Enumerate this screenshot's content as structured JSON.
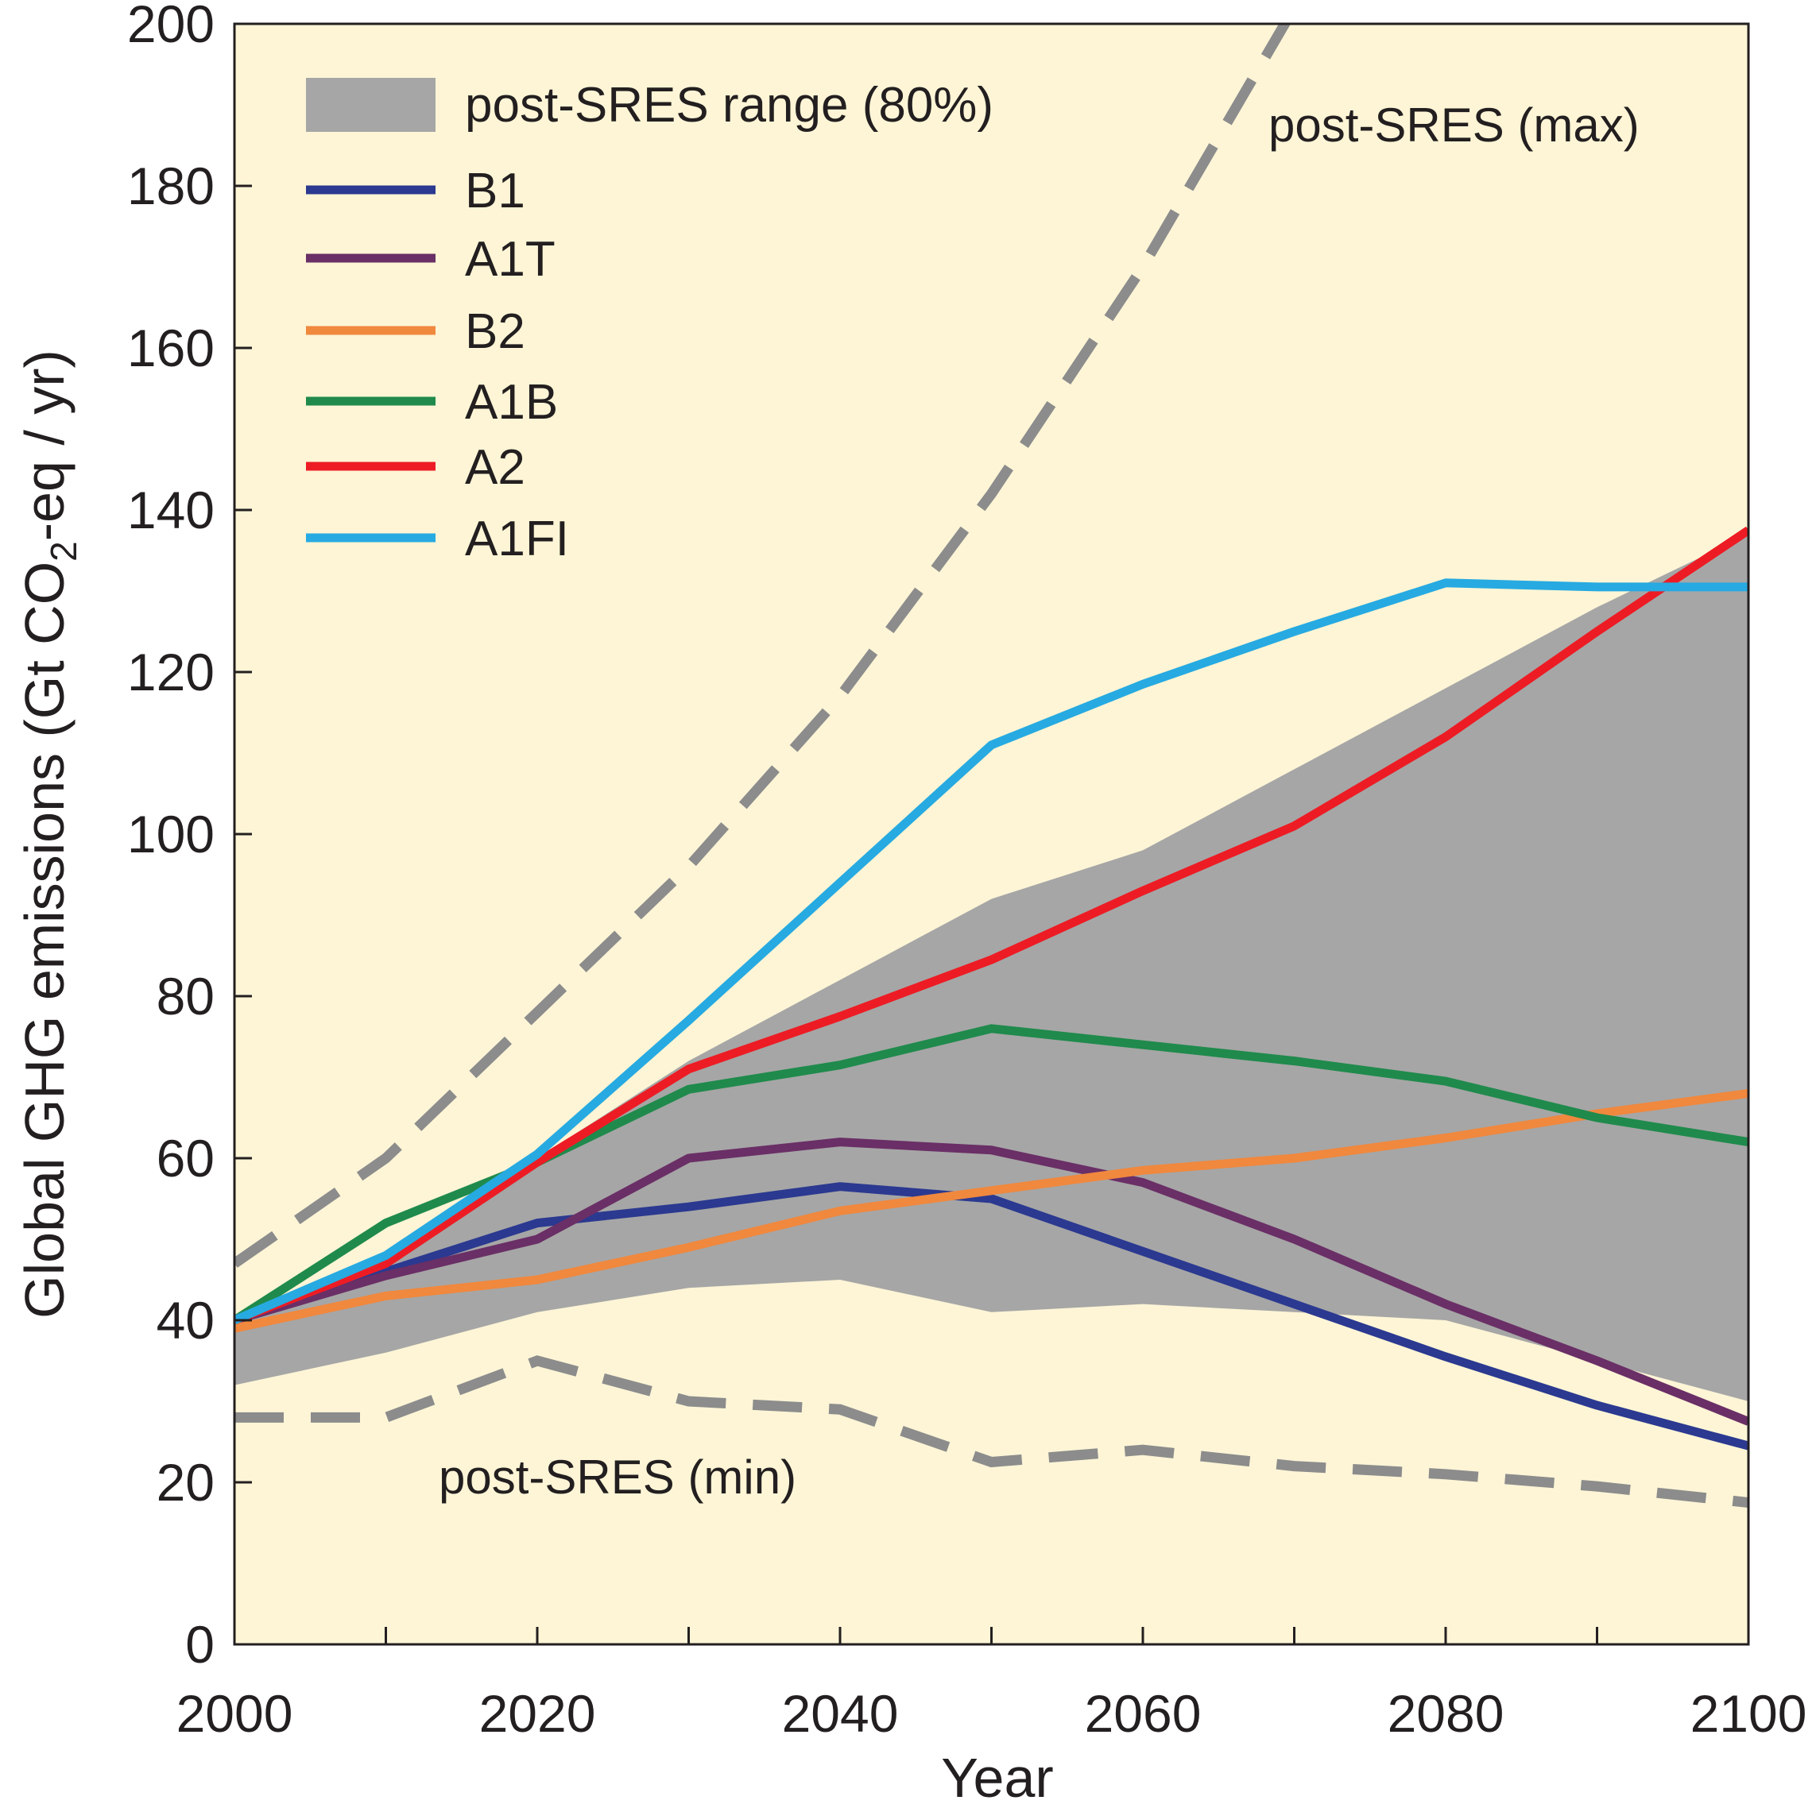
{
  "chart_data": {
    "type": "line",
    "title": "",
    "xlabel": "Year",
    "ylabel": "Global GHG emissions (Gt CO2-eq / yr)",
    "ylabel_parts": {
      "before": "Global GHG emissions (Gt CO",
      "sub": "2",
      "after": "-eq / yr)"
    },
    "xlim": [
      2000,
      2100
    ],
    "ylim": [
      0,
      200
    ],
    "x_ticks": [
      2000,
      2020,
      2040,
      2060,
      2080,
      2100
    ],
    "x_minor_ticks": [
      2010,
      2030,
      2050,
      2070,
      2090
    ],
    "y_ticks": [
      0,
      20,
      40,
      60,
      80,
      100,
      120,
      140,
      160,
      180,
      200
    ],
    "x_tick_labels": [
      "2000",
      "2020",
      "2040",
      "2060",
      "2080",
      "2100"
    ],
    "y_tick_labels": [
      "0",
      "20",
      "40",
      "60",
      "80",
      "100",
      "120",
      "140",
      "160",
      "180",
      "200"
    ],
    "background_color": "#fdf5d6",
    "band": {
      "name": "post-SRES range (80%)",
      "color": "#a6a6a6",
      "x": [
        2000,
        2010,
        2020,
        2030,
        2040,
        2050,
        2060,
        2070,
        2080,
        2090,
        2100
      ],
      "upper": [
        40,
        47,
        60,
        72,
        82,
        92,
        98,
        108,
        118,
        128,
        137
      ],
      "lower": [
        32,
        36,
        41,
        44,
        45,
        41,
        42,
        41,
        40,
        35,
        30
      ]
    },
    "series": [
      {
        "name": "B1",
        "color": "#2b3990",
        "x": [
          2000,
          2010,
          2020,
          2030,
          2040,
          2050,
          2060,
          2070,
          2080,
          2090,
          2100
        ],
        "values": [
          40,
          46,
          52,
          54,
          56.5,
          55,
          48.5,
          42,
          35.5,
          29.5,
          24.5
        ]
      },
      {
        "name": "A1T",
        "color": "#6a2f66",
        "x": [
          2000,
          2010,
          2020,
          2030,
          2040,
          2050,
          2060,
          2070,
          2080,
          2090,
          2100
        ],
        "values": [
          40,
          45.5,
          50,
          60,
          62,
          61,
          57,
          50,
          42,
          35,
          27.5
        ]
      },
      {
        "name": "B2",
        "color": "#f0883e",
        "x": [
          2000,
          2010,
          2020,
          2030,
          2040,
          2050,
          2060,
          2070,
          2080,
          2090,
          2100
        ],
        "values": [
          39,
          43,
          45,
          49,
          53.5,
          56,
          58.5,
          60,
          62.5,
          65.5,
          68
        ]
      },
      {
        "name": "A1B",
        "color": "#1f8a4c",
        "x": [
          2000,
          2010,
          2020,
          2030,
          2040,
          2050,
          2060,
          2070,
          2080,
          2090,
          2100
        ],
        "values": [
          40,
          52,
          59.5,
          68.5,
          71.5,
          76,
          74,
          72,
          69.5,
          65,
          62
        ]
      },
      {
        "name": "A2",
        "color": "#ed1c24",
        "x": [
          2000,
          2010,
          2020,
          2030,
          2040,
          2050,
          2060,
          2070,
          2080,
          2090,
          2100
        ],
        "values": [
          40,
          47,
          59.5,
          71,
          77.5,
          84.5,
          93,
          101,
          112,
          125,
          137.5
        ]
      },
      {
        "name": "A1FI",
        "color": "#27aae1",
        "x": [
          2000,
          2010,
          2020,
          2030,
          2040,
          2050,
          2060,
          2070,
          2080,
          2090,
          2100
        ],
        "values": [
          40,
          48,
          60.5,
          77,
          94,
          111,
          118.5,
          125,
          131,
          130.5,
          130.5
        ]
      }
    ],
    "dashed_series": [
      {
        "name": "post-SRES (max)",
        "color": "#8c8c8c",
        "x": [
          2000,
          2010,
          2020,
          2030,
          2040,
          2050,
          2060,
          2070
        ],
        "values": [
          47,
          60,
          78,
          96,
          117,
          142,
          170,
          202
        ]
      },
      {
        "name": "post-SRES (min)",
        "color": "#8c8c8c",
        "x": [
          2000,
          2010,
          2020,
          2030,
          2040,
          2050,
          2060,
          2070,
          2080,
          2090,
          2100
        ],
        "values": [
          28,
          28,
          35,
          30,
          29,
          22.5,
          24,
          22,
          21,
          19.5,
          17.5
        ]
      }
    ],
    "legend": {
      "placement": "top-left",
      "entries": [
        "post-SRES range (80%)",
        "B1",
        "A1T",
        "B2",
        "A1B",
        "A2",
        "A1FI"
      ]
    },
    "annotations": {
      "max_label": "post-SRES (max)",
      "min_label": "post-SRES (min)"
    }
  }
}
